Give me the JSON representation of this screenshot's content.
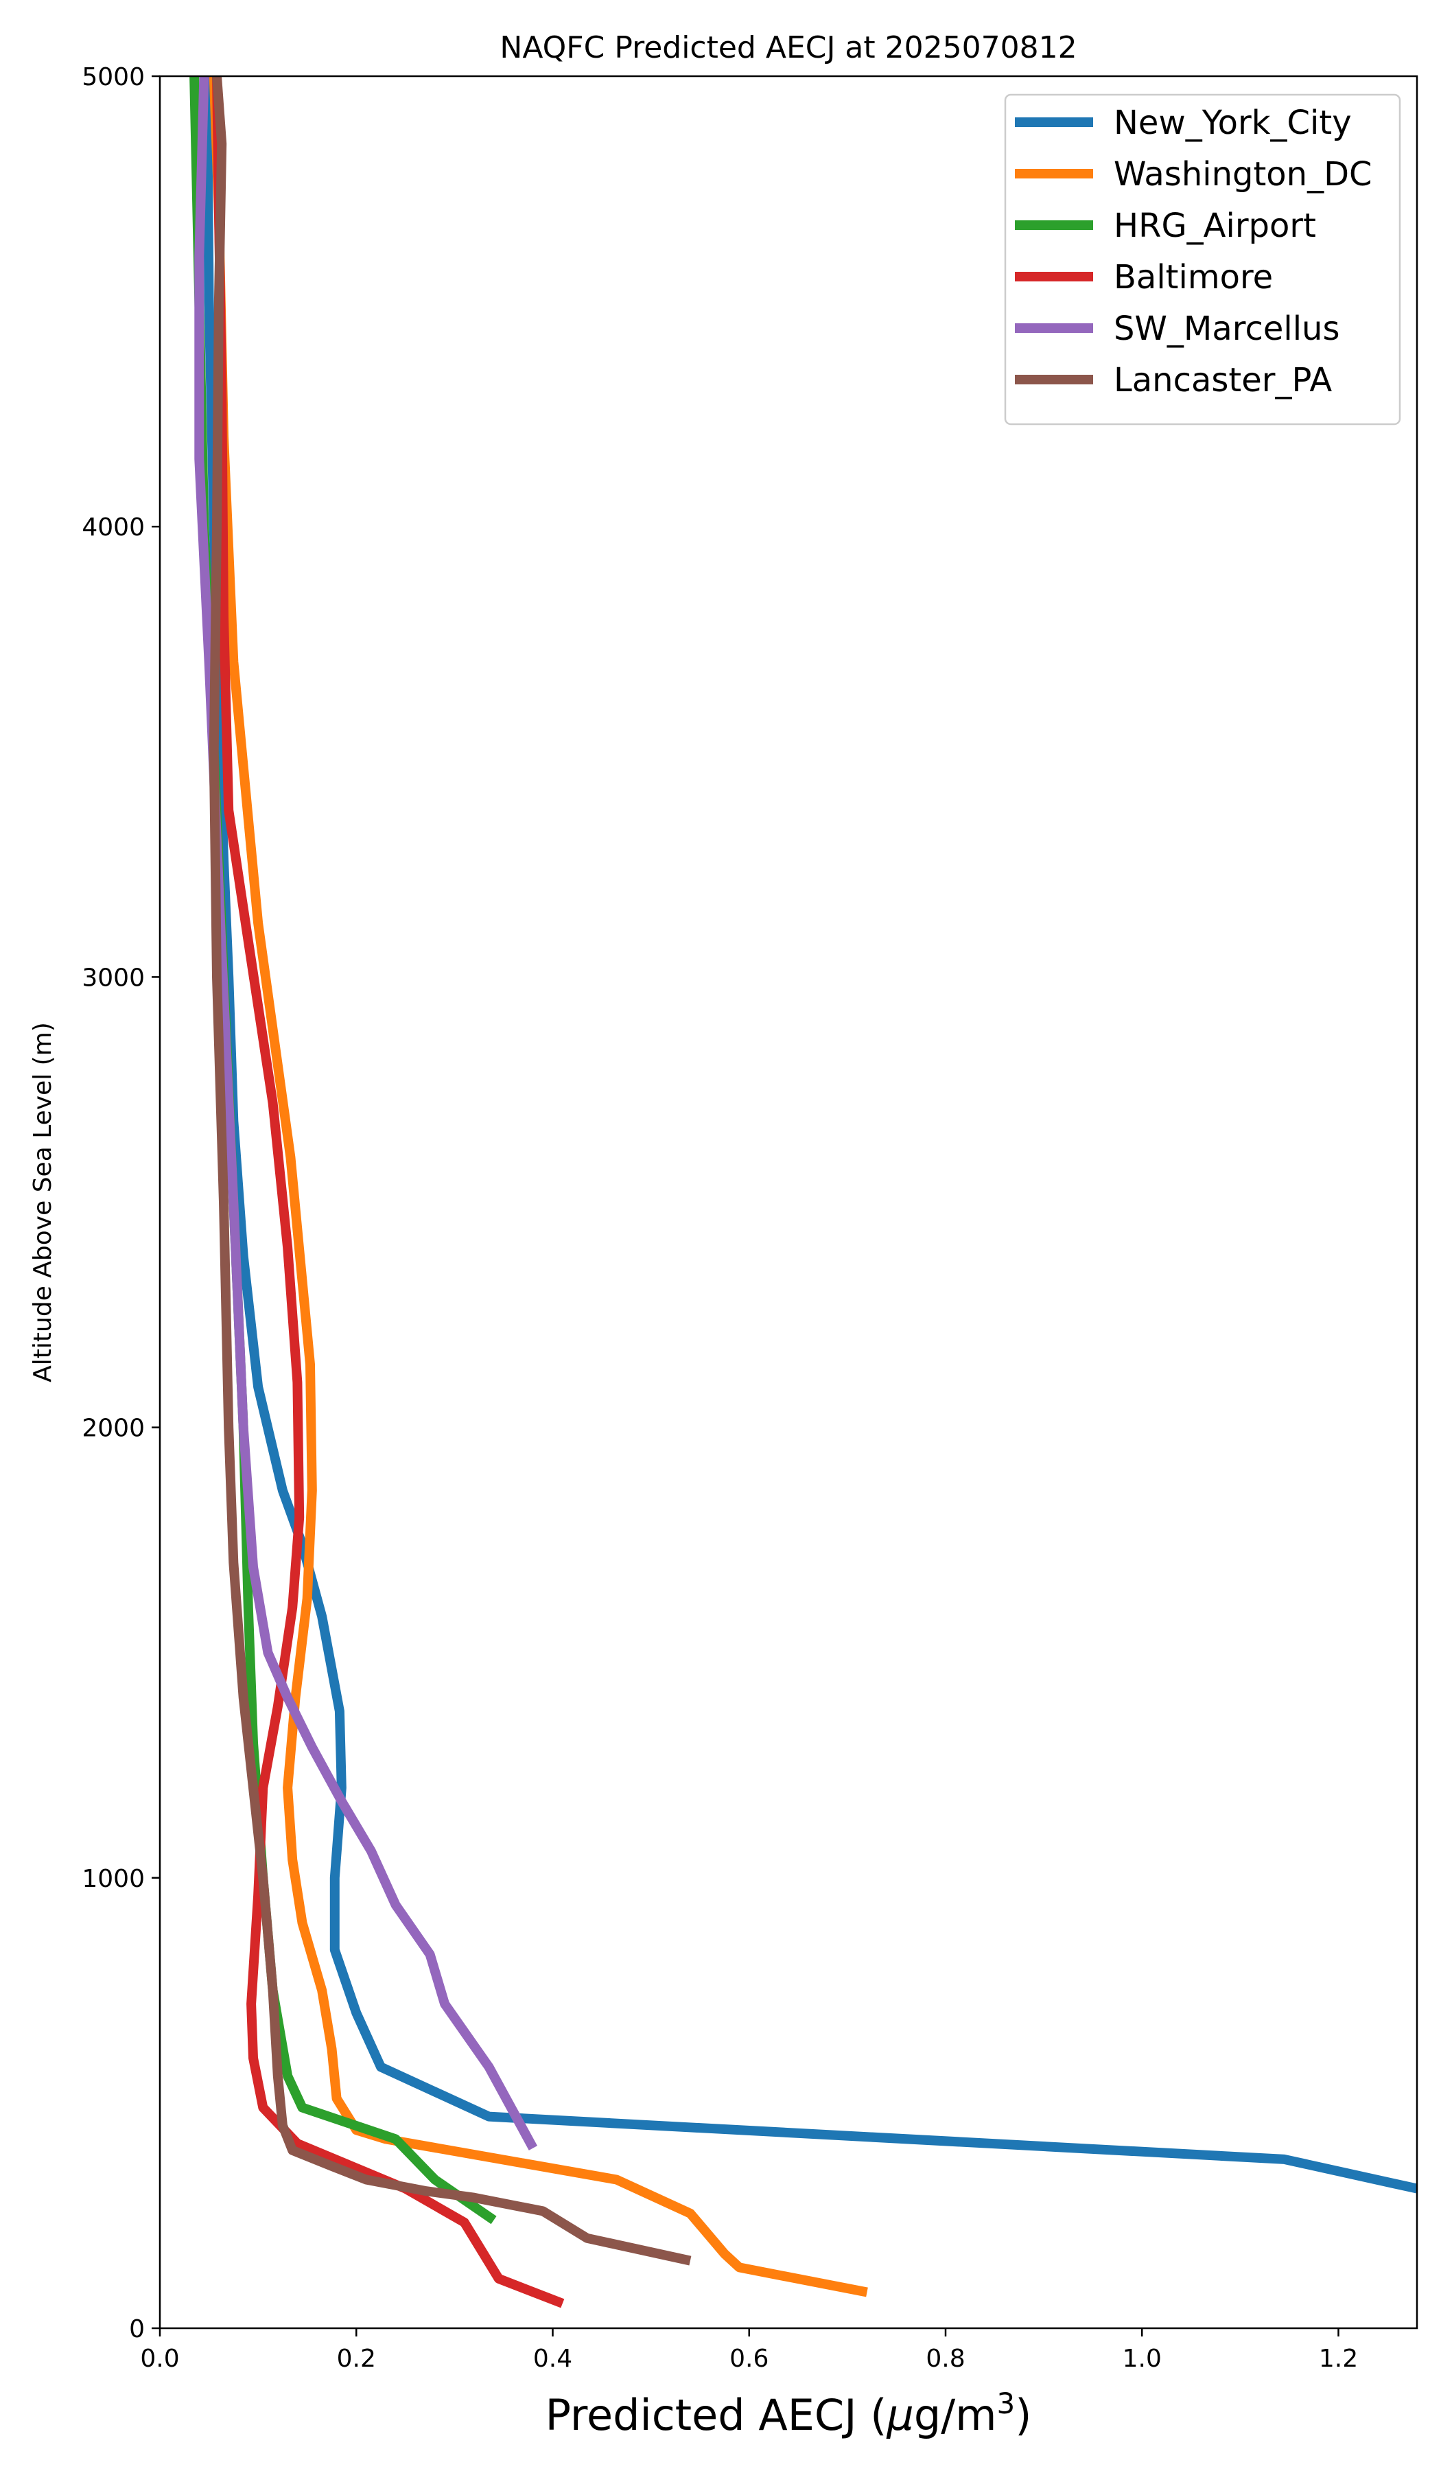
{
  "chart_data": {
    "type": "line",
    "title": "NAQFC Predicted AECJ at 2025070812",
    "xlabel_main": "Predicted AECJ (",
    "xlabel_mu": "μ",
    "xlabel_unit": "g/m",
    "xlabel_sup": "3",
    "xlabel_close": ")",
    "ylabel": "Altitude Above Sea Level (m)",
    "xlim": [
      0.0,
      1.28
    ],
    "ylim": [
      0,
      5000
    ],
    "xticks": [
      0.0,
      0.2,
      0.4,
      0.6,
      0.8,
      1.0,
      1.2
    ],
    "xtick_labels": [
      "0.0",
      "0.2",
      "0.4",
      "0.6",
      "0.8",
      "1.0",
      "1.2"
    ],
    "yticks": [
      0,
      1000,
      2000,
      3000,
      4000,
      5000
    ],
    "ytick_labels": [
      "0",
      "1000",
      "2000",
      "3000",
      "4000",
      "5000"
    ],
    "grid": false,
    "legend_position": "top-right",
    "series": [
      {
        "name": "New_York_City",
        "color": "#1f77b4",
        "points": [
          [
            1.28,
            310
          ],
          [
            1.145,
            375
          ],
          [
            0.335,
            470
          ],
          [
            0.225,
            580
          ],
          [
            0.2,
            700
          ],
          [
            0.178,
            840
          ],
          [
            0.178,
            1000
          ],
          [
            0.185,
            1200
          ],
          [
            0.183,
            1370
          ],
          [
            0.165,
            1580
          ],
          [
            0.145,
            1740
          ],
          [
            0.125,
            1860
          ],
          [
            0.1,
            2090
          ],
          [
            0.085,
            2380
          ],
          [
            0.075,
            2680
          ],
          [
            0.07,
            3000
          ],
          [
            0.065,
            3260
          ],
          [
            0.06,
            3600
          ],
          [
            0.055,
            4000
          ],
          [
            0.05,
            4500
          ],
          [
            0.048,
            5000
          ]
        ]
      },
      {
        "name": "Washington_DC",
        "color": "#ff7f0e",
        "points": [
          [
            0.72,
            80
          ],
          [
            0.59,
            135
          ],
          [
            0.575,
            165
          ],
          [
            0.54,
            255
          ],
          [
            0.465,
            330
          ],
          [
            0.23,
            420
          ],
          [
            0.2,
            440
          ],
          [
            0.18,
            510
          ],
          [
            0.175,
            620
          ],
          [
            0.165,
            750
          ],
          [
            0.145,
            900
          ],
          [
            0.135,
            1040
          ],
          [
            0.13,
            1200
          ],
          [
            0.138,
            1400
          ],
          [
            0.15,
            1620
          ],
          [
            0.155,
            1860
          ],
          [
            0.153,
            2140
          ],
          [
            0.133,
            2600
          ],
          [
            0.1,
            3120
          ],
          [
            0.075,
            3700
          ],
          [
            0.065,
            4200
          ],
          [
            0.06,
            4700
          ],
          [
            0.055,
            5000
          ]
        ]
      },
      {
        "name": "HRG_Airport",
        "color": "#2ca02c",
        "points": [
          [
            0.34,
            240
          ],
          [
            0.28,
            330
          ],
          [
            0.24,
            420
          ],
          [
            0.145,
            490
          ],
          [
            0.13,
            560
          ],
          [
            0.115,
            750
          ],
          [
            0.105,
            1000
          ],
          [
            0.095,
            1300
          ],
          [
            0.09,
            1600
          ],
          [
            0.085,
            2000
          ],
          [
            0.075,
            2500
          ],
          [
            0.065,
            3000
          ],
          [
            0.055,
            3500
          ],
          [
            0.045,
            4000
          ],
          [
            0.04,
            4500
          ],
          [
            0.035,
            5000
          ]
        ]
      },
      {
        "name": "Baltimore",
        "color": "#d62728",
        "points": [
          [
            0.41,
            55
          ],
          [
            0.345,
            110
          ],
          [
            0.31,
            235
          ],
          [
            0.25,
            310
          ],
          [
            0.14,
            410
          ],
          [
            0.105,
            490
          ],
          [
            0.095,
            600
          ],
          [
            0.093,
            720
          ],
          [
            0.1,
            960
          ],
          [
            0.105,
            1200
          ],
          [
            0.12,
            1380
          ],
          [
            0.135,
            1600
          ],
          [
            0.142,
            1800
          ],
          [
            0.14,
            2100
          ],
          [
            0.13,
            2400
          ],
          [
            0.115,
            2720
          ],
          [
            0.09,
            3080
          ],
          [
            0.07,
            3370
          ],
          [
            0.065,
            3800
          ],
          [
            0.063,
            4300
          ],
          [
            0.06,
            4700
          ],
          [
            0.058,
            5000
          ]
        ]
      },
      {
        "name": "SW_Marcellus",
        "color": "#9467bd",
        "points": [
          [
            0.38,
            400
          ],
          [
            0.36,
            480
          ],
          [
            0.335,
            580
          ],
          [
            0.29,
            720
          ],
          [
            0.275,
            830
          ],
          [
            0.24,
            940
          ],
          [
            0.215,
            1060
          ],
          [
            0.185,
            1170
          ],
          [
            0.155,
            1290
          ],
          [
            0.13,
            1400
          ],
          [
            0.11,
            1500
          ],
          [
            0.095,
            1690
          ],
          [
            0.085,
            2000
          ],
          [
            0.075,
            2500
          ],
          [
            0.062,
            3100
          ],
          [
            0.05,
            3700
          ],
          [
            0.04,
            4150
          ],
          [
            0.04,
            4600
          ],
          [
            0.045,
            5000
          ]
        ]
      },
      {
        "name": "Lancaster_PA",
        "color": "#8c564b",
        "points": [
          [
            0.54,
            150
          ],
          [
            0.435,
            200
          ],
          [
            0.39,
            260
          ],
          [
            0.32,
            290
          ],
          [
            0.27,
            305
          ],
          [
            0.21,
            330
          ],
          [
            0.175,
            360
          ],
          [
            0.135,
            395
          ],
          [
            0.125,
            450
          ],
          [
            0.12,
            560
          ],
          [
            0.115,
            750
          ],
          [
            0.105,
            1000
          ],
          [
            0.095,
            1200
          ],
          [
            0.085,
            1400
          ],
          [
            0.075,
            1700
          ],
          [
            0.07,
            2000
          ],
          [
            0.065,
            2500
          ],
          [
            0.058,
            3000
          ],
          [
            0.055,
            3500
          ],
          [
            0.058,
            4000
          ],
          [
            0.06,
            4500
          ],
          [
            0.063,
            4850
          ],
          [
            0.058,
            5000
          ]
        ]
      }
    ]
  }
}
